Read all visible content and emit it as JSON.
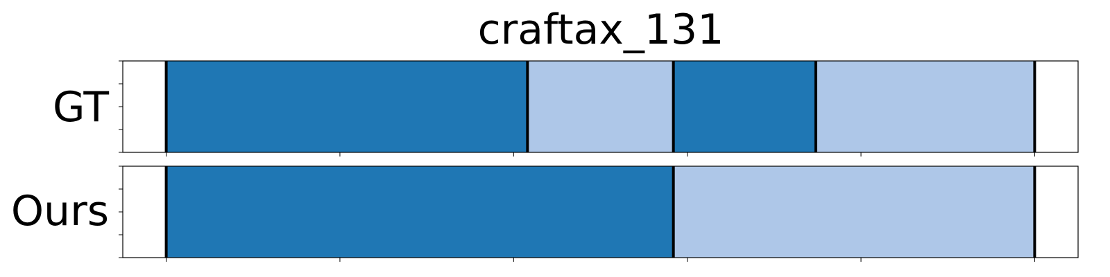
{
  "chart_data": {
    "type": "bar",
    "title": "craftax_131",
    "rows": [
      {
        "label": "GT",
        "segments": [
          {
            "start": 0,
            "end": 104,
            "color": "#1f77b4"
          },
          {
            "start": 104,
            "end": 146,
            "color": "#aec7e8"
          },
          {
            "start": 146,
            "end": 187,
            "color": "#1f77b4"
          },
          {
            "start": 187,
            "end": 250,
            "color": "#aec7e8"
          }
        ],
        "boundaries": [
          0,
          104,
          146,
          187,
          250
        ]
      },
      {
        "label": "Ours",
        "segments": [
          {
            "start": 0,
            "end": 146,
            "color": "#1f77b4"
          },
          {
            "start": 146,
            "end": 250,
            "color": "#aec7e8"
          }
        ],
        "boundaries": [
          0,
          146,
          250
        ]
      }
    ],
    "xlim": [
      -12.5,
      262.5
    ],
    "xticks": [
      0,
      50,
      100,
      150,
      200,
      250
    ],
    "grid": false,
    "legend": "none"
  }
}
